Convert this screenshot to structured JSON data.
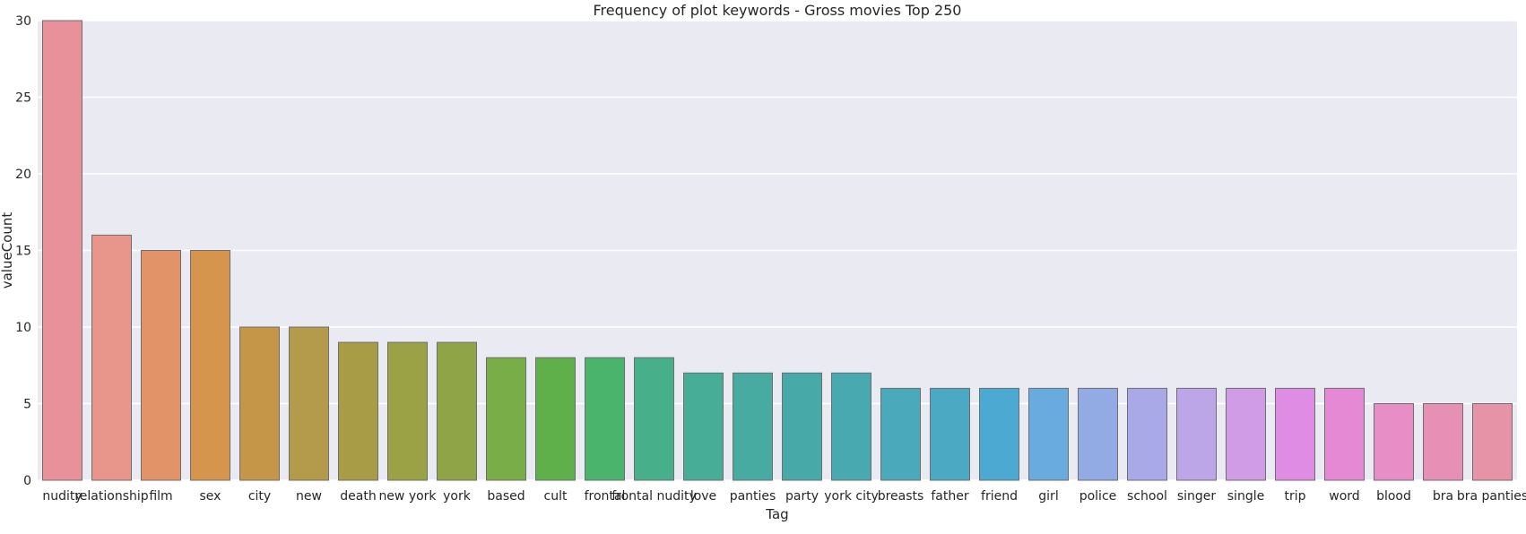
{
  "chart_data": {
    "type": "bar",
    "title": "Frequency of plot keywords - Gross movies Top 250",
    "xlabel": "Tag",
    "ylabel": "valueCount",
    "ylim": [
      0,
      30
    ],
    "yticks": [
      0,
      5,
      10,
      15,
      20,
      25,
      30
    ],
    "grid": true,
    "categories": [
      "nudity",
      "relationship",
      "film",
      "sex",
      "city",
      "new",
      "death",
      "new york",
      "york",
      "based",
      "cult",
      "frontal",
      "frontal nudity",
      "love",
      "panties",
      "party",
      "york city",
      "breasts",
      "father",
      "friend",
      "girl",
      "police",
      "school",
      "singer",
      "single",
      "trip",
      "word",
      "blood",
      "bra",
      "bra panties"
    ],
    "values": [
      30,
      16,
      15,
      15,
      10,
      10,
      9,
      9,
      9,
      8,
      8,
      8,
      8,
      7,
      7,
      7,
      7,
      6,
      6,
      6,
      6,
      6,
      6,
      6,
      6,
      6,
      6,
      5,
      5,
      5
    ],
    "colors": [
      "#e8919b",
      "#e8968c",
      "#e39368",
      "#d5954d",
      "#c59648",
      "#b49a4b",
      "#a99c47",
      "#9ba246",
      "#8ea447",
      "#78ad48",
      "#5fb04a",
      "#4ab46c",
      "#47b08a",
      "#48ad97",
      "#48aba2",
      "#48aaa8",
      "#48a9b0",
      "#4aa9ba",
      "#4ba9c4",
      "#4ba9d2",
      "#6aabdf",
      "#93abe4",
      "#a9a9e8",
      "#bca6e8",
      "#d09ce6",
      "#df8ce4",
      "#e589d4",
      "#e68ec5",
      "#e690b6",
      "#e693a8"
    ]
  }
}
